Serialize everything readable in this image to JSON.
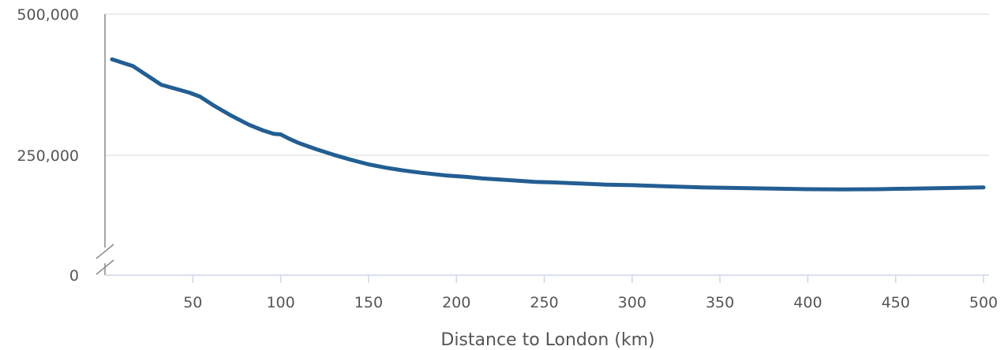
{
  "chart_data": {
    "type": "line",
    "title": "",
    "xlabel": "Distance to London (km)",
    "ylabel": "",
    "xlim": [
      0,
      500
    ],
    "ylim": [
      0,
      500000
    ],
    "axis_break": true,
    "grid": "horizontal",
    "x_ticks": [
      "50",
      "100",
      "150",
      "200",
      "250",
      "300",
      "350",
      "400",
      "450",
      "500"
    ],
    "y_ticks": [
      "0",
      "250,000",
      "500,000"
    ],
    "series": [
      {
        "color": "#235e93",
        "x": [
          4,
          16,
          32,
          40,
          48,
          54,
          62,
          72,
          82,
          90,
          96,
          100,
          105,
          110,
          120,
          130,
          140,
          150,
          160,
          170,
          180,
          195,
          205,
          215,
          230,
          245,
          255,
          270,
          285,
          300,
          320,
          340,
          360,
          380,
          400,
          420,
          440,
          460,
          480,
          500
        ],
        "y": [
          420000,
          408000,
          375000,
          368000,
          361000,
          354000,
          338000,
          320000,
          304000,
          294000,
          288000,
          287000,
          279000,
          272000,
          261000,
          251000,
          242000,
          234000,
          228000,
          223000,
          219000,
          214000,
          212000,
          209000,
          206000,
          203000,
          202000,
          200000,
          198000,
          197000,
          195000,
          193000,
          192000,
          191000,
          190000,
          189500,
          190000,
          191000,
          192000,
          193000
        ]
      }
    ]
  }
}
